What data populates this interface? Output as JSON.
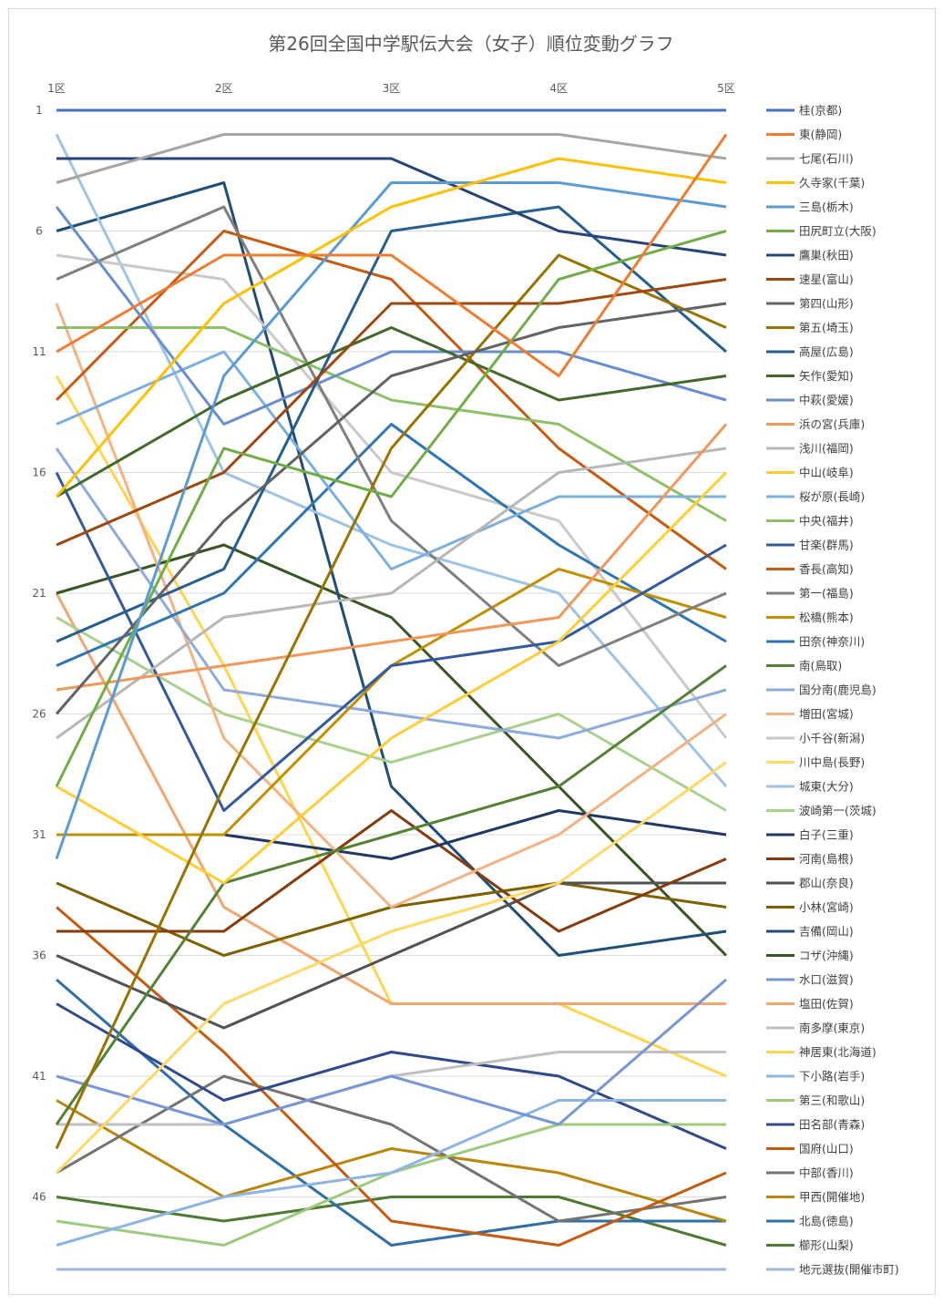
{
  "chart_data": {
    "type": "line",
    "title": "第26回全国中学駅伝大会（女子）順位変動グラフ",
    "categories": [
      "1区",
      "2区",
      "3区",
      "4区",
      "5区"
    ],
    "yticks": [
      1,
      6,
      11,
      16,
      21,
      26,
      31,
      36,
      41,
      46
    ],
    "ylim": [
      1,
      49
    ],
    "y_inverted": true,
    "grid": true,
    "legend_position": "right",
    "series": [
      {
        "name": "桂(京都)",
        "color": "#4472C4",
        "values": [
          1,
          1,
          1,
          1,
          1
        ]
      },
      {
        "name": "東(静岡)",
        "color": "#ED7D31",
        "values": [
          11,
          7,
          7,
          12,
          2
        ]
      },
      {
        "name": "七尾(石川)",
        "color": "#A5A5A5",
        "values": [
          4,
          2,
          2,
          2,
          3
        ]
      },
      {
        "name": "久寺家(千葉)",
        "color": "#FFC000",
        "values": [
          17,
          9,
          5,
          3,
          4
        ]
      },
      {
        "name": "三島(栃木)",
        "color": "#5B9BD5",
        "values": [
          32,
          12,
          4,
          4,
          5
        ]
      },
      {
        "name": "田尻町立(大阪)",
        "color": "#70AD47",
        "values": [
          29,
          15,
          17,
          8,
          6
        ]
      },
      {
        "name": "鷹巣(秋田)",
        "color": "#264478",
        "values": [
          3,
          3,
          3,
          6,
          7
        ]
      },
      {
        "name": "速星(富山)",
        "color": "#9E480E",
        "values": [
          19,
          16,
          9,
          9,
          8
        ]
      },
      {
        "name": "第四(山形)",
        "color": "#636363",
        "values": [
          26,
          18,
          12,
          10,
          9
        ]
      },
      {
        "name": "第五(埼玉)",
        "color": "#997300",
        "values": [
          44,
          29,
          15,
          7,
          10
        ]
      },
      {
        "name": "高屋(広島)",
        "color": "#255E91",
        "values": [
          23,
          20,
          6,
          5,
          11
        ]
      },
      {
        "name": "矢作(愛知)",
        "color": "#43682B",
        "values": [
          17,
          13,
          10,
          13,
          12
        ]
      },
      {
        "name": "中萩(愛媛)",
        "color": "#698ED0",
        "values": [
          5,
          14,
          11,
          11,
          13
        ]
      },
      {
        "name": "浜の宮(兵庫)",
        "color": "#F1975A",
        "values": [
          25,
          24,
          23,
          22,
          14
        ]
      },
      {
        "name": "浅川(福岡)",
        "color": "#B7B7B7",
        "values": [
          27,
          22,
          21,
          16,
          15
        ]
      },
      {
        "name": "中山(岐阜)",
        "color": "#FFCD33",
        "values": [
          29,
          33,
          27,
          23,
          16
        ]
      },
      {
        "name": "桜が原(長崎)",
        "color": "#7CAFDD",
        "values": [
          14,
          11,
          20,
          17,
          17
        ]
      },
      {
        "name": "中央(福井)",
        "color": "#8CC168",
        "values": [
          10,
          10,
          13,
          14,
          18
        ]
      },
      {
        "name": "甘楽(群馬)",
        "color": "#335AA1",
        "values": [
          16,
          30,
          24,
          23,
          19
        ]
      },
      {
        "name": "香長(高知)",
        "color": "#C55A11",
        "values": [
          13,
          6,
          8,
          15,
          20
        ]
      },
      {
        "name": "第一(福島)",
        "color": "#7F7F7F",
        "values": [
          8,
          5,
          18,
          24,
          21
        ]
      },
      {
        "name": "松橋(熊本)",
        "color": "#BF9000",
        "values": [
          31,
          31,
          24,
          20,
          22
        ]
      },
      {
        "name": "田奈(神奈川)",
        "color": "#2E75B6",
        "values": [
          24,
          21,
          14,
          19,
          23
        ]
      },
      {
        "name": "南(鳥取)",
        "color": "#548235",
        "values": [
          43,
          33,
          31,
          29,
          24
        ]
      },
      {
        "name": "国分南(鹿児島)",
        "color": "#8FAADC",
        "values": [
          15,
          25,
          26,
          27,
          25
        ]
      },
      {
        "name": "増田(宮城)",
        "color": "#F4B183",
        "values": [
          9,
          27,
          34,
          31,
          26
        ]
      },
      {
        "name": "小千谷(新潟)",
        "color": "#C9C9C9",
        "values": [
          7,
          8,
          16,
          18,
          27
        ]
      },
      {
        "name": "川中島(長野)",
        "color": "#FFD966",
        "values": [
          45,
          38,
          35,
          33,
          28
        ]
      },
      {
        "name": "城東(大分)",
        "color": "#9DC3E6",
        "values": [
          2,
          16,
          19,
          21,
          29
        ]
      },
      {
        "name": "波崎第一(茨城)",
        "color": "#A9D18E",
        "values": [
          22,
          26,
          28,
          26,
          30
        ]
      },
      {
        "name": "白子(三重)",
        "color": "#203864",
        "values": [
          31,
          31,
          32,
          30,
          31
        ]
      },
      {
        "name": "河南(島根)",
        "color": "#843C0C",
        "values": [
          35,
          35,
          30,
          35,
          32
        ]
      },
      {
        "name": "郡山(奈良)",
        "color": "#525252",
        "values": [
          36,
          39,
          36,
          33,
          33
        ]
      },
      {
        "name": "小林(宮崎)",
        "color": "#7F6000",
        "values": [
          33,
          36,
          34,
          33,
          34
        ]
      },
      {
        "name": "吉備(岡山)",
        "color": "#1F4E79",
        "values": [
          6,
          4,
          29,
          36,
          35
        ]
      },
      {
        "name": "コザ(沖縄)",
        "color": "#375623",
        "values": [
          21,
          19,
          22,
          29,
          36
        ]
      },
      {
        "name": "水口(滋賀)",
        "color": "#7796D6",
        "values": [
          41,
          43,
          41,
          43,
          37
        ]
      },
      {
        "name": "塩田(佐賀)",
        "color": "#F4A46D",
        "values": [
          21,
          34,
          38,
          38,
          38
        ]
      },
      {
        "name": "南多摩(東京)",
        "color": "#C0C0C0",
        "values": [
          43,
          43,
          41,
          40,
          40
        ]
      },
      {
        "name": "神居東(北海道)",
        "color": "#FFD54F",
        "values": [
          12,
          24,
          38,
          38,
          41
        ]
      },
      {
        "name": "下小路(岩手)",
        "color": "#8DB4E2",
        "values": [
          48,
          46,
          45,
          42,
          42
        ]
      },
      {
        "name": "第三(和歌山)",
        "color": "#9DCB7E",
        "values": [
          47,
          48,
          45,
          43,
          43
        ]
      },
      {
        "name": "田名部(青森)",
        "color": "#2F4A8A",
        "values": [
          38,
          42,
          40,
          41,
          44
        ]
      },
      {
        "name": "国府(山口)",
        "color": "#C55A11",
        "values": [
          34,
          40,
          47,
          48,
          45
        ]
      },
      {
        "name": "中部(香川)",
        "color": "#737373",
        "values": [
          45,
          41,
          43,
          47,
          46
        ]
      },
      {
        "name": "甲西(開催地)",
        "color": "#B8860B",
        "values": [
          42,
          46,
          44,
          45,
          47
        ]
      },
      {
        "name": "北島(徳島)",
        "color": "#2E6FA8",
        "values": [
          37,
          43,
          48,
          47,
          47
        ]
      },
      {
        "name": "櫛形(山梨)",
        "color": "#4F7A33",
        "values": [
          46,
          47,
          46,
          46,
          48
        ]
      },
      {
        "name": "地元選抜(開催市町)",
        "color": "#9FB6E0",
        "values": [
          49,
          49,
          49,
          49,
          49
        ]
      }
    ]
  }
}
